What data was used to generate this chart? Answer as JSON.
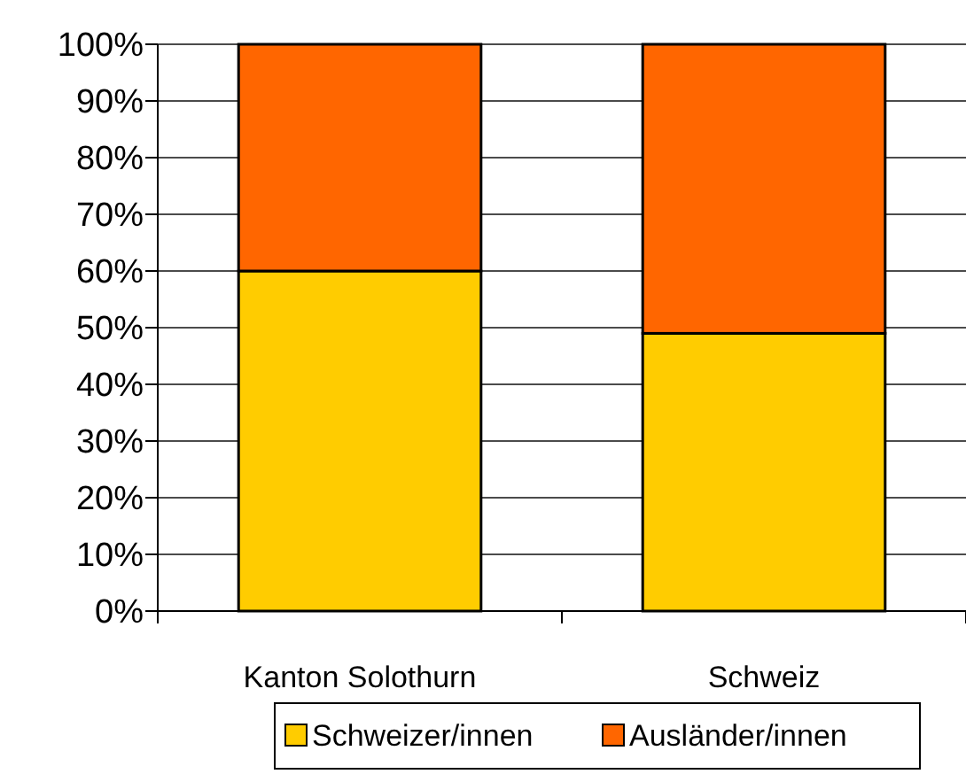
{
  "chart_data": {
    "type": "bar",
    "stacked": true,
    "categories": [
      "Kanton Solothurn",
      "Schweiz"
    ],
    "series": [
      {
        "name": "Schweizer/innen",
        "color": "#ffcc00",
        "values": [
          60,
          49
        ]
      },
      {
        "name": "Ausländer/innen",
        "color": "#ff6600",
        "values": [
          40,
          51
        ]
      }
    ],
    "ylim": [
      0,
      100
    ],
    "yticks": [
      {
        "value": 0,
        "label": "0%"
      },
      {
        "value": 10,
        "label": "10%"
      },
      {
        "value": 20,
        "label": "20%"
      },
      {
        "value": 30,
        "label": "30%"
      },
      {
        "value": 40,
        "label": "40%"
      },
      {
        "value": 50,
        "label": "50%"
      },
      {
        "value": 60,
        "label": "60%"
      },
      {
        "value": 70,
        "label": "70%"
      },
      {
        "value": 80,
        "label": "80%"
      },
      {
        "value": 90,
        "label": "90%"
      },
      {
        "value": 100,
        "label": "100%"
      }
    ],
    "grid": "y",
    "legend": "bottom"
  }
}
